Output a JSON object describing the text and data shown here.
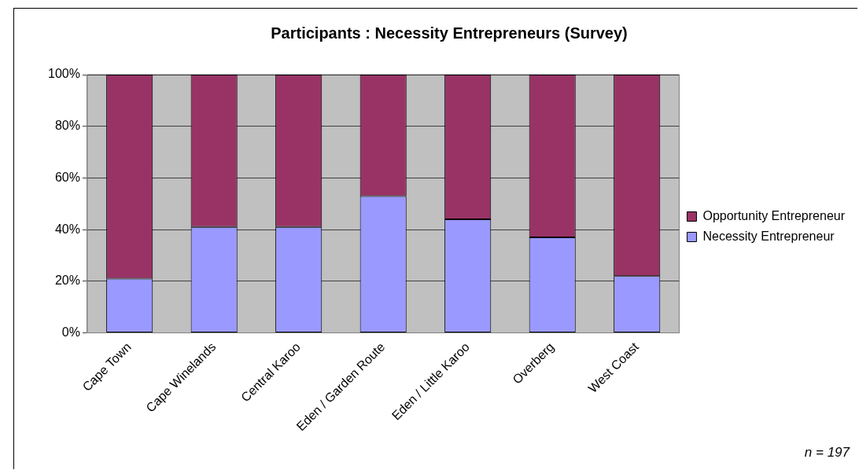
{
  "chart_data": {
    "type": "bar",
    "title": "Participants : Necessity Entrepreneurs (Survey)",
    "categories": [
      "Cape Town",
      "Cape Winelands",
      "Central Karoo",
      "Eden / Garden Route",
      "Eden / Little Karoo",
      "Overberg",
      "West Coast"
    ],
    "series": [
      {
        "name": "Necessity Entrepreneur",
        "color": "#9999ff",
        "values": [
          21,
          41,
          41,
          53,
          44,
          37,
          22
        ]
      },
      {
        "name": "Opportunity Entrepreneur",
        "color": "#993366",
        "values": [
          79,
          59,
          59,
          47,
          56,
          63,
          78
        ]
      }
    ],
    "stacked": true,
    "ylim": [
      0,
      100
    ],
    "yticks": [
      {
        "value": 0,
        "label": "0%"
      },
      {
        "value": 20,
        "label": "20%"
      },
      {
        "value": 40,
        "label": "40%"
      },
      {
        "value": 60,
        "label": "60%"
      },
      {
        "value": 80,
        "label": "80%"
      },
      {
        "value": 100,
        "label": "100%"
      }
    ],
    "grid": "y",
    "legend": "right",
    "annotations": [
      "n = 197"
    ]
  }
}
